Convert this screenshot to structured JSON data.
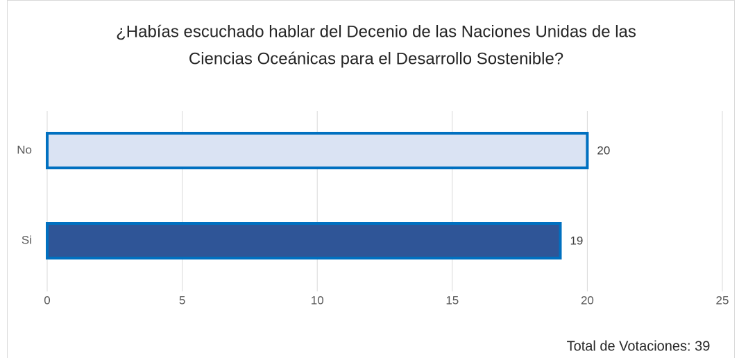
{
  "chart_data": {
    "type": "barh",
    "title": [
      "¿Habías escuchado hablar del Decenio de las Naciones Unidas de las",
      "Ciencias Oceánicas para el Desarrollo Sostenible?"
    ],
    "categories": [
      "No",
      "Si"
    ],
    "values": [
      20,
      19
    ],
    "colors": [
      "#dae3f3",
      "#2f5597"
    ],
    "edgecolor": "#0070c0",
    "xlim": [
      0,
      25
    ],
    "xticks": [
      0,
      5,
      10,
      15,
      20,
      25
    ],
    "grid": true,
    "annotation": "Total de Votaciones: 39"
  }
}
